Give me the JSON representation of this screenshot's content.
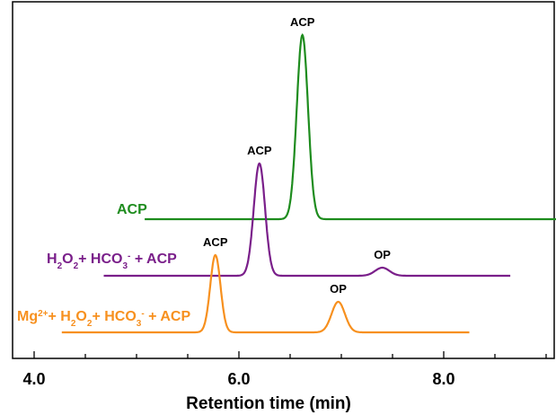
{
  "chart_data": {
    "type": "line",
    "title": "",
    "xlabel": "Retention time (min)",
    "ylabel": "",
    "xlim": [
      4.0,
      9.1
    ],
    "x_ticks": [
      4.0,
      6.0,
      8.0
    ],
    "x_tick_labels": [
      "4.0",
      "6.0",
      "8.0"
    ],
    "grid": false,
    "legend": "none",
    "series": [
      {
        "name": "ACP",
        "color": "#1e8c1e",
        "x_range": [
          5.08,
          9.1
        ],
        "baseline": 0,
        "peaks": [
          {
            "x": 6.62,
            "height": 205,
            "width": 0.055,
            "label": "ACP"
          }
        ]
      },
      {
        "name": "H2O2+ HCO3- + ACP",
        "color": "#7a1f8a",
        "x_range": [
          4.68,
          8.65
        ],
        "baseline": 0,
        "peaks": [
          {
            "x": 6.2,
            "height": 125,
            "width": 0.055,
            "label": "ACP"
          },
          {
            "x": 7.4,
            "height": 9,
            "width": 0.07,
            "label": "OP"
          }
        ]
      },
      {
        "name": "Mg2+ + H2O2+ HCO3- + ACP",
        "color": "#f7901e",
        "x_range": [
          4.27,
          8.25
        ],
        "baseline": 0,
        "peaks": [
          {
            "x": 5.77,
            "height": 86,
            "width": 0.05,
            "label": "ACP"
          },
          {
            "x": 6.97,
            "height": 34,
            "width": 0.065,
            "label": "OP"
          }
        ]
      }
    ],
    "series_labels": [
      {
        "parts": [
          {
            "t": "ACP"
          }
        ]
      },
      {
        "parts": [
          {
            "t": "H"
          },
          {
            "t": "2",
            "s": "sub"
          },
          {
            "t": "O"
          },
          {
            "t": "2",
            "s": "sub"
          },
          {
            "t": "+ HCO"
          },
          {
            "t": "3",
            "s": "sub"
          },
          {
            "t": "-",
            "s": "sup"
          },
          {
            "t": " + ACP"
          }
        ]
      },
      {
        "parts": [
          {
            "t": "Mg"
          },
          {
            "t": "2+",
            "s": "sup"
          },
          {
            "t": "+ H"
          },
          {
            "t": "2",
            "s": "sub"
          },
          {
            "t": "O"
          },
          {
            "t": "2",
            "s": "sub"
          },
          {
            "t": "+ HCO"
          },
          {
            "t": "3",
            "s": "sub"
          },
          {
            "t": "-",
            "s": "sup"
          },
          {
            "t": " + ACP"
          }
        ]
      }
    ]
  }
}
